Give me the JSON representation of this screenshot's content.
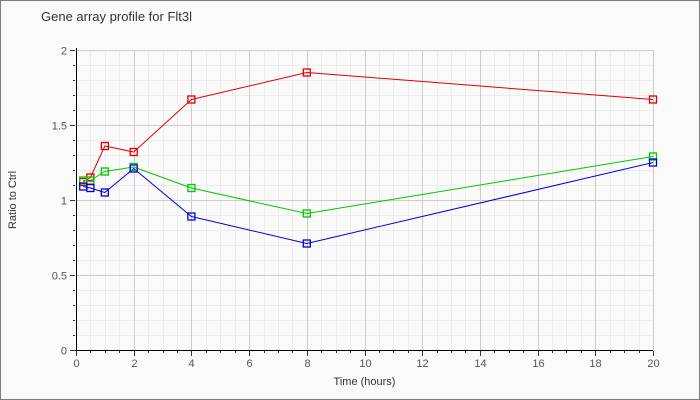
{
  "header": {
    "title": "Gene array profile for Flt3l"
  },
  "chart_data": {
    "type": "line",
    "title": "Gene array profile for Flt3l",
    "xlabel": "Time (hours)",
    "ylabel": "Ratio to Ctrl",
    "xlim": [
      0,
      20
    ],
    "ylim": [
      0,
      2
    ],
    "x_major_ticks": [
      0,
      2,
      4,
      6,
      8,
      10,
      12,
      14,
      16,
      18,
      20
    ],
    "x_minor_step": 0.5,
    "y_major_ticks": [
      0,
      0.5,
      1,
      1.5,
      2
    ],
    "y_minor_step": 0.1,
    "grid": true,
    "legend_position": "none",
    "marker": "open-square",
    "x": [
      0.25,
      0.5,
      1,
      2,
      4,
      8,
      20
    ],
    "series": [
      {
        "name": "series-red",
        "color": "#e00000",
        "values": [
          1.12,
          1.15,
          1.36,
          1.32,
          1.67,
          1.85,
          1.67
        ]
      },
      {
        "name": "series-green",
        "color": "#00c800",
        "values": [
          1.13,
          1.13,
          1.19,
          1.22,
          1.08,
          0.91,
          1.29
        ]
      },
      {
        "name": "series-blue",
        "color": "#0000d8",
        "values": [
          1.09,
          1.08,
          1.05,
          1.21,
          0.89,
          0.71,
          1.25
        ]
      }
    ],
    "colors": {
      "grid_minor": "#ececec",
      "grid_major": "#cccccc",
      "plot_border": "#cccccc",
      "axis": "#000000",
      "tick": "#333333",
      "tick_label": "#555555",
      "title_text": "#333333"
    }
  }
}
